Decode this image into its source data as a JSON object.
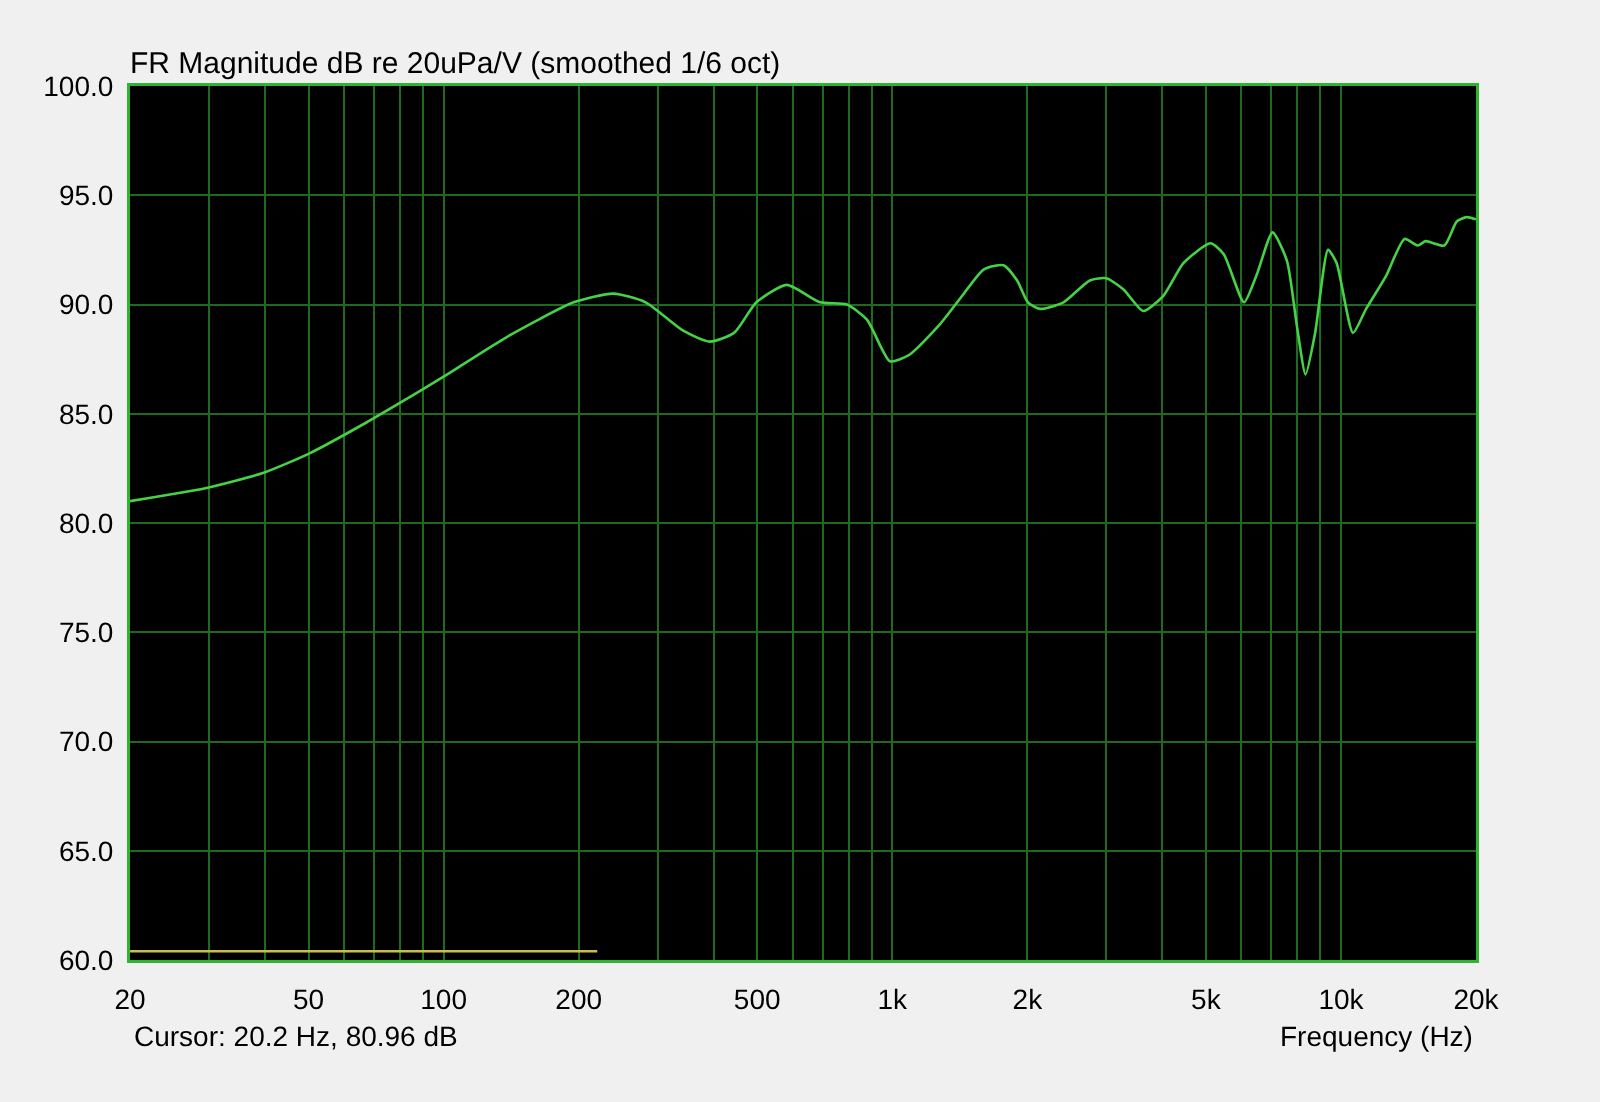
{
  "chart_data": {
    "type": "line",
    "title": "FR Magnitude dB re 20uPa/V (smoothed 1/6 oct)",
    "xlabel": "Frequency (Hz)",
    "annotations": [
      "Cursor: 20.2 Hz, 80.96 dB"
    ],
    "series": [
      {
        "color": "#46d246",
        "x": [
          20,
          29.6,
          39.7,
          50.4,
          67.3,
          77,
          100,
          138,
          195,
          239,
          282,
          342,
          392,
          444,
          498,
          582,
          690,
          792,
          879,
          988,
          1092,
          1278,
          1432,
          1598,
          1770,
          1898,
          2006,
          2136,
          2408,
          2756,
          3000,
          3272,
          3628,
          4020,
          4460,
          5120,
          5480,
          6080,
          6500,
          7040,
          7580,
          7980,
          8340,
          8760,
          9360,
          9780,
          10640,
          11380,
          12600,
          13860,
          14840,
          15440,
          17000,
          18120,
          19060,
          20000
        ],
        "values": [
          81.0,
          81.6,
          82.3,
          83.2,
          84.6,
          85.3,
          86.7,
          88.5,
          90.1,
          90.5,
          90.1,
          88.8,
          88.3,
          88.7,
          90.1,
          90.9,
          90.1,
          90.0,
          89.3,
          87.4,
          87.7,
          89.1,
          90.4,
          91.6,
          91.8,
          91.1,
          90.1,
          89.8,
          90.1,
          91.1,
          91.2,
          90.7,
          89.7,
          90.4,
          91.9,
          92.8,
          92.3,
          90.1,
          91.4,
          93.3,
          92.0,
          89.0,
          86.8,
          88.7,
          92.5,
          91.9,
          88.7,
          89.8,
          91.3,
          93.0,
          92.7,
          92.9,
          92.7,
          93.8,
          94.0,
          93.9
        ]
      },
      {
        "color": "#c8be50",
        "x": [
          20,
          220
        ],
        "values": [
          60.4,
          60.4
        ]
      }
    ],
    "log": "x",
    "grid": true,
    "xlim": [
      20,
      20000
    ],
    "xticks": [
      20,
      {
        "value": 30,
        "label": null
      },
      {
        "value": 40,
        "label": null
      },
      50,
      {
        "value": 60,
        "label": null
      },
      {
        "value": 70,
        "label": null
      },
      {
        "value": 80,
        "label": null
      },
      {
        "value": 90,
        "label": null
      },
      100,
      200,
      {
        "value": 300,
        "label": null
      },
      {
        "value": 400,
        "label": null
      },
      500,
      {
        "value": 600,
        "label": null
      },
      {
        "value": 700,
        "label": null
      },
      {
        "value": 800,
        "label": null
      },
      {
        "value": 900,
        "label": null
      },
      {
        "value": 1000,
        "label": "1k"
      },
      {
        "value": 2000,
        "label": "2k"
      },
      {
        "value": 3000,
        "label": null
      },
      {
        "value": 4000,
        "label": null
      },
      {
        "value": 5000,
        "label": "5k"
      },
      {
        "value": 6000,
        "label": null
      },
      {
        "value": 7000,
        "label": null
      },
      {
        "value": 8000,
        "label": null
      },
      {
        "value": 9000,
        "label": null
      },
      {
        "value": 10000,
        "label": "10k"
      },
      {
        "value": 20000,
        "label": "20k"
      }
    ],
    "ylim": [
      60,
      100
    ],
    "yticks": [
      {
        "value": 60,
        "label": "60.0"
      },
      {
        "value": 65,
        "label": "65.0"
      },
      {
        "value": 70,
        "label": "70.0"
      },
      {
        "value": 75,
        "label": "75.0"
      },
      {
        "value": 80,
        "label": "80.0"
      },
      {
        "value": 85,
        "label": "85.0"
      },
      {
        "value": 90,
        "label": "90.0"
      },
      {
        "value": 95,
        "label": "95.0"
      },
      {
        "value": 100,
        "label": "100.0"
      }
    ]
  }
}
